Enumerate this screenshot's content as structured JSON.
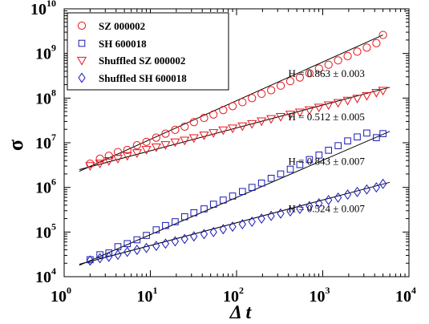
{
  "chart_data": {
    "type": "scatter",
    "x_scale": "log",
    "y_scale": "log",
    "xlim": [
      1,
      10000
    ],
    "ylim": [
      10000,
      10000000000
    ],
    "x_ticks": [
      {
        "base": "10",
        "exp": "0",
        "value": 1
      },
      {
        "base": "10",
        "exp": "1",
        "value": 10
      },
      {
        "base": "10",
        "exp": "2",
        "value": 100
      },
      {
        "base": "10",
        "exp": "3",
        "value": 1000
      },
      {
        "base": "10",
        "exp": "4",
        "value": 10000
      }
    ],
    "y_ticks": [
      {
        "base": "10",
        "exp": "4",
        "value": 10000
      },
      {
        "base": "10",
        "exp": "5",
        "value": 100000
      },
      {
        "base": "10",
        "exp": "6",
        "value": 1000000
      },
      {
        "base": "10",
        "exp": "7",
        "value": 10000000
      },
      {
        "base": "10",
        "exp": "8",
        "value": 100000000
      },
      {
        "base": "10",
        "exp": "9",
        "value": 1000000000
      },
      {
        "base": "10",
        "exp": "10",
        "value": 10000000000
      }
    ],
    "xlabel": "Δ t",
    "ylabel": "σ",
    "legend_position": "top-left",
    "series": [
      {
        "name": "SZ 000002",
        "marker": "circle",
        "color": "#e8141b",
        "x": [
          2,
          2.6,
          3.3,
          4.2,
          5.4,
          7,
          9,
          11.7,
          15,
          19.4,
          25,
          32,
          42,
          54,
          70,
          90,
          117,
          151,
          195,
          252,
          325,
          420,
          542,
          700,
          904,
          1167,
          1507,
          1945,
          2512,
          3243,
          4188,
          5000
        ],
        "y": [
          3400000,
          4400000,
          5100000,
          6200000,
          6900000,
          8800000,
          10500000,
          13000000,
          16000000,
          19500000,
          23000000,
          29000000,
          36000000,
          43000000,
          54000000,
          66000000,
          81000000,
          100000000,
          125000000,
          150000000,
          190000000,
          240000000,
          290000000,
          360000000,
          460000000,
          560000000,
          700000000,
          870000000,
          1100000000,
          1350000000,
          1700000000,
          2600000000
        ]
      },
      {
        "name": "SH 600018",
        "marker": "square",
        "color": "#1a1ab8",
        "x": [
          2,
          2.6,
          3.3,
          4.2,
          5.4,
          7,
          9,
          11.7,
          15,
          19.4,
          25,
          32,
          42,
          54,
          70,
          90,
          117,
          151,
          195,
          252,
          325,
          420,
          542,
          700,
          904,
          1167,
          1507,
          1945,
          2512,
          3243,
          4188,
          5000
        ],
        "y": [
          24000,
          31000,
          34000,
          47000,
          55000,
          67000,
          84000,
          112000,
          140000,
          170000,
          220000,
          270000,
          330000,
          420000,
          520000,
          640000,
          810000,
          1000000,
          1250000,
          1600000,
          2000000,
          2550000,
          3250000,
          4200000,
          5300000,
          6800000,
          8600000,
          11000000,
          13500000,
          16500000,
          13000000,
          16000000
        ]
      },
      {
        "name": "Shuffled SZ 000002",
        "marker": "triangle-down",
        "color": "#e8141b",
        "x": [
          2,
          2.6,
          3.3,
          4.2,
          5.4,
          7,
          9,
          11.7,
          15,
          19.4,
          25,
          32,
          42,
          54,
          70,
          90,
          117,
          151,
          195,
          252,
          325,
          420,
          542,
          700,
          904,
          1167,
          1507,
          1945,
          2512,
          3243,
          4188,
          5000
        ],
        "y": [
          3100000,
          3500000,
          4000000,
          4500000,
          5200000,
          6000000,
          7100000,
          8100000,
          9100000,
          10500000,
          11500000,
          13000000,
          15000000,
          17000000,
          19500000,
          21500000,
          24000000,
          27000000,
          31000000,
          35000000,
          39000000,
          44000000,
          49000000,
          55000000,
          63000000,
          71000000,
          80000000,
          90000000,
          100000000,
          115000000,
          135000000,
          150000000
        ]
      },
      {
        "name": "Shuffled SH 600018",
        "marker": "diamond",
        "color": "#1a1ab8",
        "x": [
          2,
          2.6,
          3.3,
          4.2,
          5.4,
          7,
          9,
          11.7,
          15,
          19.4,
          25,
          32,
          42,
          54,
          70,
          90,
          117,
          151,
          195,
          252,
          325,
          420,
          542,
          700,
          904,
          1167,
          1507,
          1945,
          2512,
          3243,
          4188,
          5000
        ],
        "y": [
          23000,
          26000,
          28000,
          31000,
          36000,
          40000,
          44000,
          49000,
          55000,
          62000,
          70000,
          80000,
          90000,
          100000,
          116000,
          132000,
          150000,
          170000,
          200000,
          230000,
          260000,
          290000,
          330000,
          380000,
          440000,
          520000,
          590000,
          690000,
          790000,
          900000,
          1000000,
          1200000
        ]
      }
    ],
    "fit_lines": [
      {
        "x": [
          1.5,
          5000
        ],
        "y": [
          2300000,
          2600000000
        ]
      },
      {
        "x": [
          1.5,
          6000
        ],
        "y": [
          18000,
          18000000
        ]
      },
      {
        "x": [
          1.5,
          6000
        ],
        "y": [
          2500000,
          175000000
        ]
      },
      {
        "x": [
          1.5,
          6000
        ],
        "y": [
          19000,
          1300000
        ]
      }
    ],
    "annotations": [
      {
        "text": "H = 0.863 ± 0.003",
        "x": 1000,
        "y": 300000000
      },
      {
        "text": "H = 0.512 ± 0.005",
        "x": 1000,
        "y": 32000000
      },
      {
        "text": "H = 0.843 ± 0.007",
        "x": 1000,
        "y": 3200000
      },
      {
        "text": "H = 0.524 ± 0.007",
        "x": 1000,
        "y": 280000
      }
    ]
  }
}
